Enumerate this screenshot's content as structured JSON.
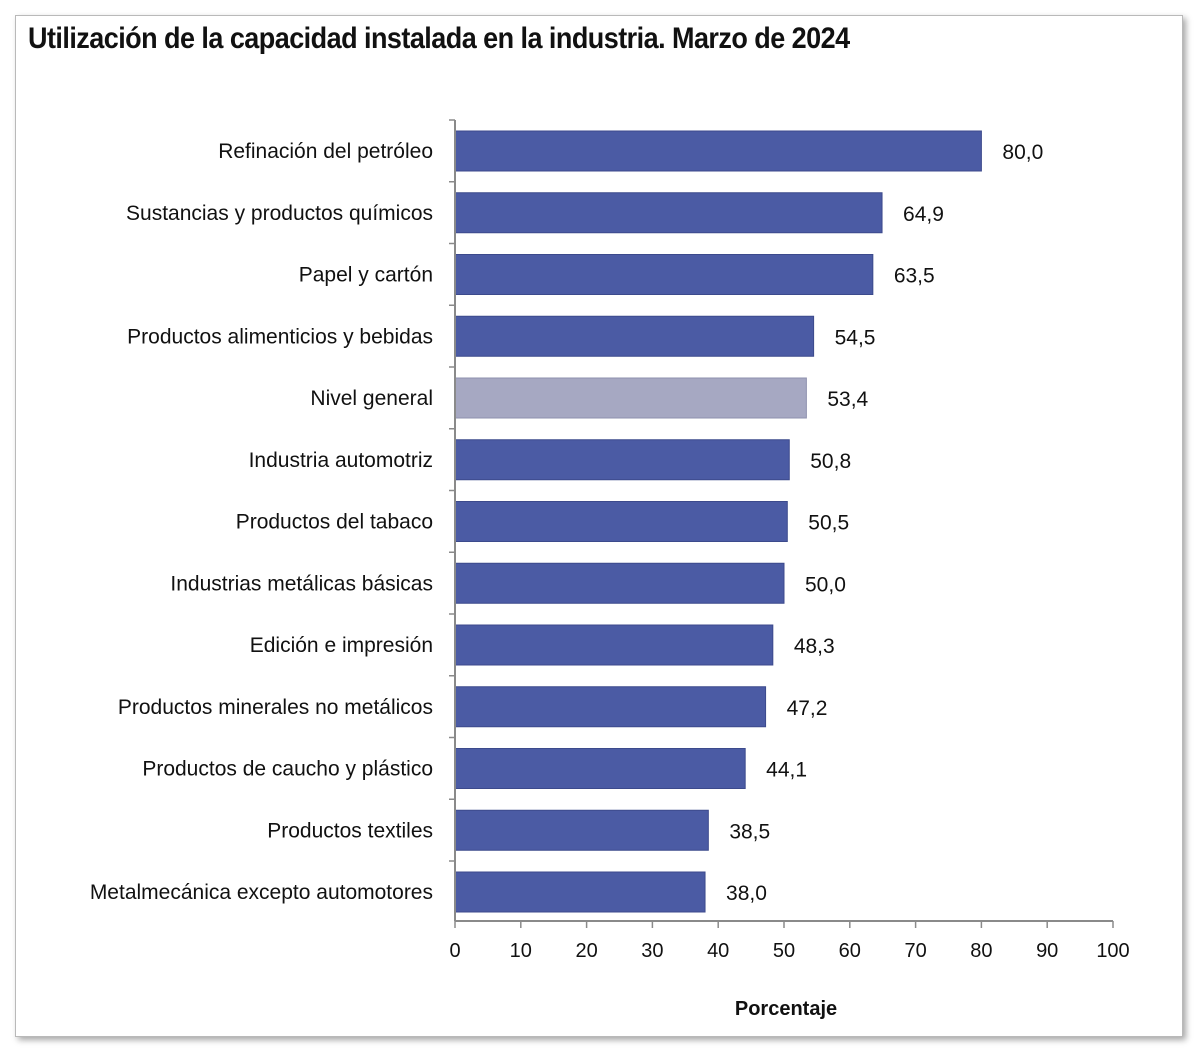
{
  "chart_data": {
    "type": "bar",
    "orientation": "horizontal",
    "title": "Utilización de la capacidad instalada en la industria. Marzo de 2024",
    "categories": [
      "Refinación del petróleo",
      "Sustancias y productos químicos",
      "Papel y cartón",
      "Productos alimenticios y bebidas",
      "Nivel general",
      "Industria automotriz",
      "Productos del tabaco",
      "Industrias metálicas básicas",
      "Edición e impresión",
      "Productos minerales no metálicos",
      "Productos de caucho y plástico",
      "Productos textiles",
      "Metalmecánica excepto automotores"
    ],
    "values": [
      80.0,
      64.9,
      63.5,
      54.5,
      53.4,
      50.8,
      50.5,
      50.0,
      48.3,
      47.2,
      44.1,
      38.5,
      38.0
    ],
    "value_labels": [
      "80,0",
      "64,9",
      "63,5",
      "54,5",
      "53,4",
      "50,8",
      "50,5",
      "50,0",
      "48,3",
      "47,2",
      "44,1",
      "38,5",
      "38,0"
    ],
    "highlight_category": "Nivel general",
    "xlabel": "Porcentaje",
    "ylabel": "",
    "xlim": [
      0,
      100
    ],
    "xticks": [
      0,
      10,
      20,
      30,
      40,
      50,
      60,
      70,
      80,
      90,
      100
    ],
    "xtick_labels": [
      "0",
      "10",
      "20",
      "30",
      "40",
      "50",
      "60",
      "70",
      "80",
      "90",
      "100"
    ],
    "grid": false,
    "colors": {
      "bar": "#4b5ba4",
      "highlight": "#a6a8c2",
      "axis": "#8a8a8a",
      "text": "#111111"
    }
  }
}
